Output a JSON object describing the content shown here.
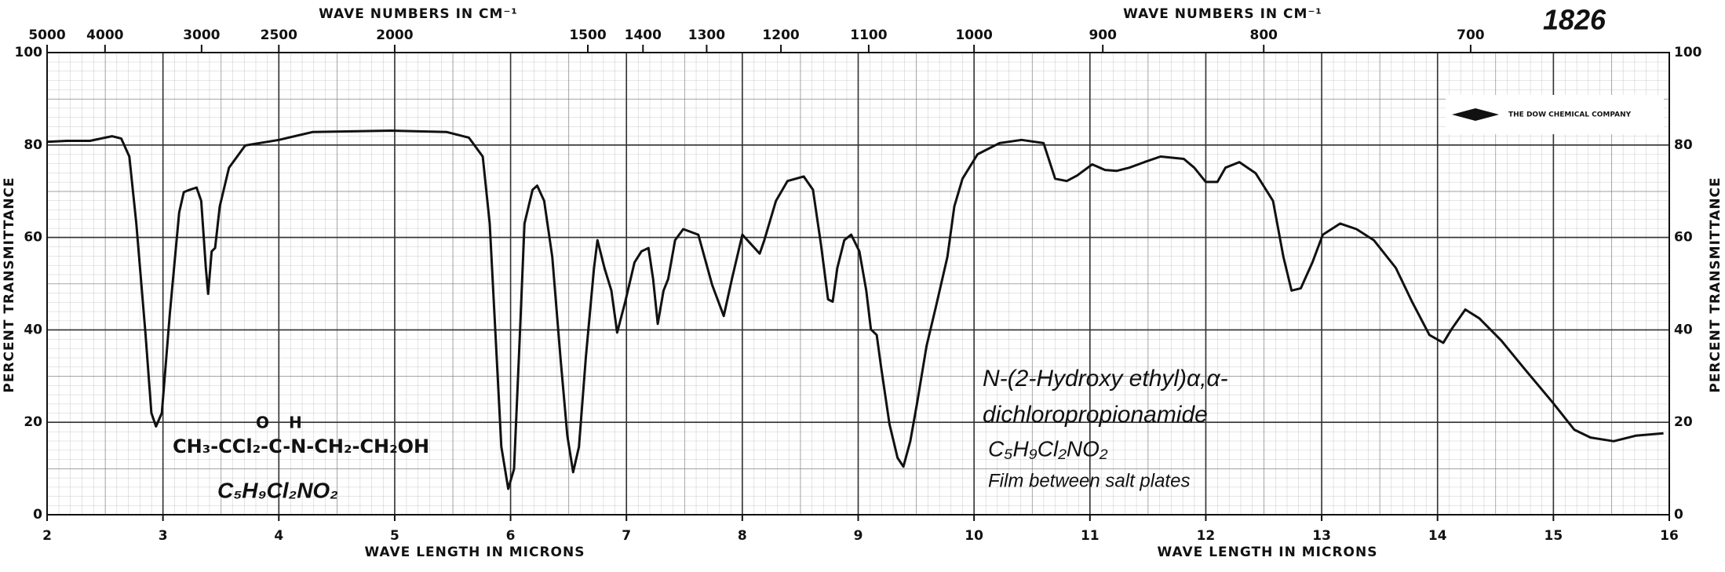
{
  "chart_data": {
    "type": "line",
    "x_label": "WAVE LENGTH IN MICRONS",
    "x2_label": "WAVE NUMBERS IN CM⁻¹",
    "y_label": "PERCENT TRANSMITTANCE",
    "catalog_number": "1826",
    "company": "THE DOW CHEMICAL COMPANY",
    "compound_name": [
      "N-(2-Hydroxy ethyl)α,α-",
      "dichloropropionamide"
    ],
    "compound_formula": "C₅H₉Cl₂NO₂",
    "sample_note": "Film between salt plates",
    "structure": {
      "chain": "CH₃-CCl₂-C-N-CH₂-CH₂OH",
      "carbonyl": "O",
      "amide_h": "H",
      "formula": "C₅H₉Cl₂NO₂"
    },
    "color": "#111111",
    "grid": true,
    "xlim": [
      2,
      16
    ],
    "ylim": [
      0,
      100
    ],
    "xticks": [
      2,
      3,
      4,
      5,
      6,
      7,
      8,
      9,
      10,
      11,
      12,
      13,
      14,
      15,
      16
    ],
    "x2ticks": [
      5000,
      4000,
      3000,
      2500,
      2000,
      1500,
      1400,
      1300,
      1200,
      1100,
      1000,
      900,
      800,
      700
    ],
    "yticks": [
      0,
      20,
      40,
      60,
      80,
      100
    ],
    "x": [
      2.0,
      2.17,
      2.37,
      2.56,
      2.64,
      2.71,
      2.77,
      2.85,
      2.9,
      2.94,
      2.99,
      3.06,
      3.14,
      3.18,
      3.23,
      3.29,
      3.33,
      3.37,
      3.39,
      3.42,
      3.45,
      3.49,
      3.57,
      3.71,
      4.0,
      4.29,
      4.97,
      5.45,
      5.64,
      5.76,
      5.82,
      5.87,
      5.92,
      5.98,
      6.03,
      6.08,
      6.12,
      6.19,
      6.23,
      6.29,
      6.36,
      6.43,
      6.49,
      6.54,
      6.59,
      6.65,
      6.72,
      6.75,
      6.81,
      6.87,
      6.92,
      6.99,
      7.07,
      7.13,
      7.19,
      7.23,
      7.27,
      7.32,
      7.36,
      7.42,
      7.49,
      7.62,
      7.74,
      7.84,
      7.91,
      8.0,
      8.07,
      8.15,
      8.19,
      8.29,
      8.39,
      8.53,
      8.61,
      8.68,
      8.74,
      8.78,
      8.82,
      8.88,
      8.94,
      9.01,
      9.07,
      9.11,
      9.16,
      9.2,
      9.27,
      9.34,
      9.39,
      9.45,
      9.51,
      9.59,
      9.67,
      9.77,
      9.83,
      9.9,
      10.03,
      10.22,
      10.41,
      10.6,
      10.7,
      10.8,
      10.89,
      11.02,
      11.13,
      11.23,
      11.34,
      11.47,
      11.61,
      11.81,
      11.9,
      12.0,
      12.1,
      12.17,
      12.29,
      12.43,
      12.58,
      12.67,
      12.74,
      12.82,
      12.92,
      13.01,
      13.16,
      13.3,
      13.45,
      13.64,
      13.78,
      13.93,
      14.05,
      14.12,
      14.24,
      14.36,
      14.55,
      14.75,
      14.99,
      15.18,
      15.32,
      15.52,
      15.71,
      15.95
    ],
    "values": [
      80.7,
      80.9,
      80.9,
      81.9,
      81.4,
      77.5,
      63.0,
      38.9,
      22.0,
      19.1,
      22.0,
      43.7,
      65.4,
      69.8,
      70.3,
      70.8,
      67.9,
      53.4,
      47.8,
      57.0,
      57.7,
      66.7,
      75.1,
      79.9,
      81.1,
      82.8,
      83.1,
      82.8,
      81.6,
      77.5,
      63.0,
      38.9,
      14.7,
      5.6,
      9.9,
      38.9,
      63.0,
      70.3,
      71.2,
      67.9,
      55.8,
      34.1,
      17.1,
      9.2,
      14.7,
      34.1,
      53.4,
      59.4,
      53.4,
      48.5,
      39.4,
      46.1,
      54.6,
      57.0,
      57.7,
      51.0,
      41.3,
      48.5,
      51.0,
      59.4,
      61.8,
      60.6,
      49.7,
      43.0,
      51.0,
      60.6,
      58.7,
      56.5,
      59.4,
      67.9,
      72.2,
      73.2,
      70.3,
      58.2,
      46.6,
      46.1,
      53.4,
      59.4,
      60.6,
      57.0,
      48.5,
      40.1,
      38.9,
      31.6,
      19.6,
      12.3,
      10.4,
      15.9,
      24.4,
      36.5,
      44.9,
      55.8,
      66.7,
      72.7,
      78.0,
      80.4,
      81.1,
      80.4,
      72.7,
      72.2,
      73.4,
      75.8,
      74.6,
      74.4,
      75.1,
      76.3,
      77.5,
      77.0,
      75.1,
      72.0,
      72.0,
      75.1,
      76.3,
      73.9,
      67.9,
      55.8,
      48.5,
      49.0,
      54.6,
      60.6,
      63.0,
      61.8,
      59.4,
      53.4,
      46.1,
      38.9,
      37.2,
      40.1,
      44.4,
      42.5,
      37.7,
      31.6,
      24.4,
      18.4,
      16.7,
      15.9,
      17.1,
      17.6
    ]
  }
}
